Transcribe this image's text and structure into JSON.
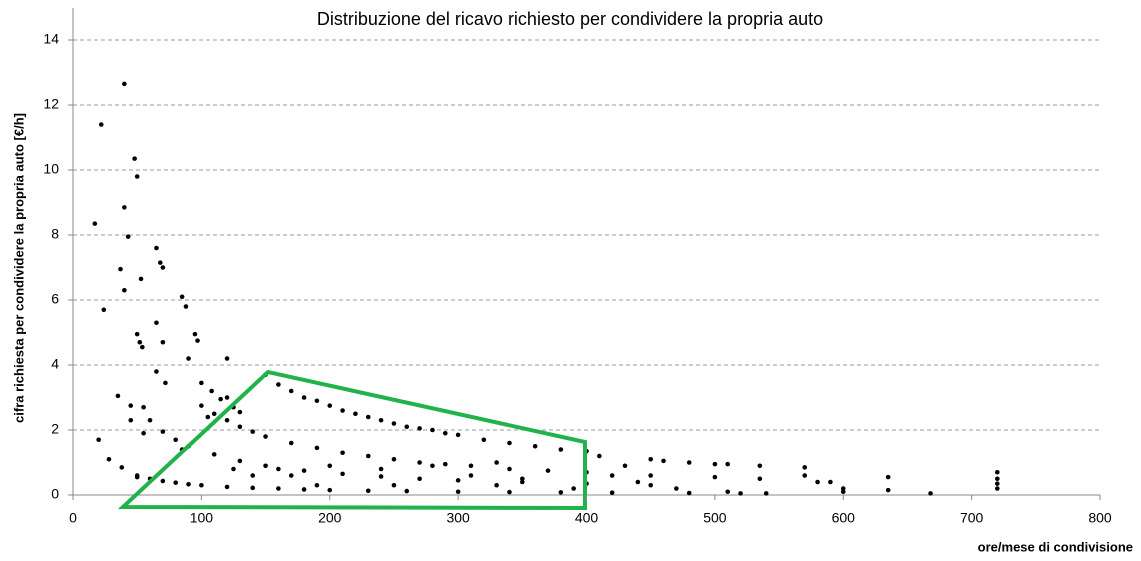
{
  "chart_data": {
    "type": "scatter",
    "title": "Distribuzione del ricavo richiesto per condividere la propria auto",
    "x_label": "ore/mese di condivisione",
    "y_label": "cifra richiesta per condividere la propria auto [€/h]",
    "color": "#000000",
    "grid": true,
    "xlim": [
      0,
      800
    ],
    "xticks": [
      0,
      100,
      200,
      300,
      400,
      500,
      600,
      700,
      800
    ],
    "ylim": [
      0,
      14
    ],
    "yticks": [
      0,
      2,
      4,
      6,
      8,
      10,
      12,
      14
    ],
    "x": [
      17,
      20,
      22,
      24,
      28,
      35,
      37,
      38,
      40,
      40,
      40,
      43,
      45,
      45,
      48,
      50,
      50,
      52,
      53,
      54,
      55,
      55,
      50,
      65,
      68,
      70,
      65,
      65,
      72,
      70,
      85,
      88,
      90,
      95,
      97,
      85,
      100,
      105,
      108,
      115,
      120,
      120,
      125,
      130,
      150,
      160,
      170,
      180,
      190,
      200,
      210,
      220,
      230,
      240,
      250,
      260,
      270,
      280,
      290,
      300,
      320,
      340,
      360,
      380,
      400,
      100,
      110,
      120,
      130,
      140,
      150,
      170,
      190,
      210,
      230,
      250,
      270,
      290,
      310,
      340,
      370,
      400,
      450,
      500,
      60,
      70,
      80,
      90,
      110,
      130,
      150,
      180,
      210,
      240,
      270,
      300,
      350,
      400,
      450,
      50,
      60,
      70,
      80,
      90,
      100,
      120,
      140,
      160,
      180,
      200,
      230,
      260,
      300,
      340,
      380,
      420,
      480,
      540,
      410,
      430,
      450,
      460,
      480,
      500,
      510,
      535,
      535,
      570,
      570,
      580,
      590,
      600,
      600,
      635,
      635,
      668,
      720,
      720,
      720,
      720,
      510,
      520,
      470,
      440,
      420,
      390,
      350,
      330,
      310,
      280,
      240,
      200,
      160,
      170,
      140,
      125,
      190,
      250,
      330
    ],
    "values": [
      8.35,
      1.7,
      11.4,
      5.7,
      1.1,
      3.05,
      6.95,
      0.85,
      12.65,
      8.85,
      6.3,
      7.95,
      2.75,
      2.3,
      10.35,
      9.8,
      4.95,
      4.7,
      6.65,
      4.55,
      2.7,
      1.9,
      0.55,
      7.6,
      7.15,
      7.0,
      5.3,
      3.8,
      3.45,
      4.7,
      6.1,
      5.8,
      4.2,
      4.95,
      4.75,
      1.4,
      3.45,
      2.4,
      3.2,
      2.95,
      4.2,
      3.0,
      2.7,
      2.55,
      3.7,
      3.4,
      3.2,
      3.0,
      2.9,
      2.75,
      2.6,
      2.5,
      2.4,
      2.3,
      2.2,
      2.1,
      2.05,
      2.0,
      1.9,
      1.85,
      1.7,
      1.6,
      1.5,
      1.4,
      1.35,
      2.75,
      2.5,
      2.3,
      2.1,
      1.95,
      1.8,
      1.6,
      1.45,
      1.3,
      1.2,
      1.1,
      1.0,
      0.95,
      0.9,
      0.8,
      0.75,
      0.7,
      0.6,
      0.55,
      2.3,
      1.95,
      1.7,
      1.5,
      1.25,
      1.05,
      0.9,
      0.75,
      0.65,
      0.57,
      0.5,
      0.45,
      0.4,
      0.35,
      0.3,
      0.6,
      0.5,
      0.43,
      0.38,
      0.33,
      0.3,
      0.25,
      0.22,
      0.2,
      0.17,
      0.15,
      0.13,
      0.12,
      0.1,
      0.09,
      0.08,
      0.07,
      0.06,
      0.05,
      1.2,
      0.9,
      1.1,
      1.05,
      1.0,
      0.95,
      0.95,
      0.9,
      0.5,
      0.85,
      0.6,
      0.4,
      0.4,
      0.2,
      0.1,
      0.55,
      0.15,
      0.05,
      0.7,
      0.5,
      0.35,
      0.2,
      0.1,
      0.05,
      0.2,
      0.4,
      0.6,
      0.2,
      0.5,
      1.0,
      0.6,
      0.9,
      0.8,
      0.9,
      0.8,
      0.6,
      0.6,
      0.8,
      0.3,
      0.3,
      0.3
    ]
  }
}
